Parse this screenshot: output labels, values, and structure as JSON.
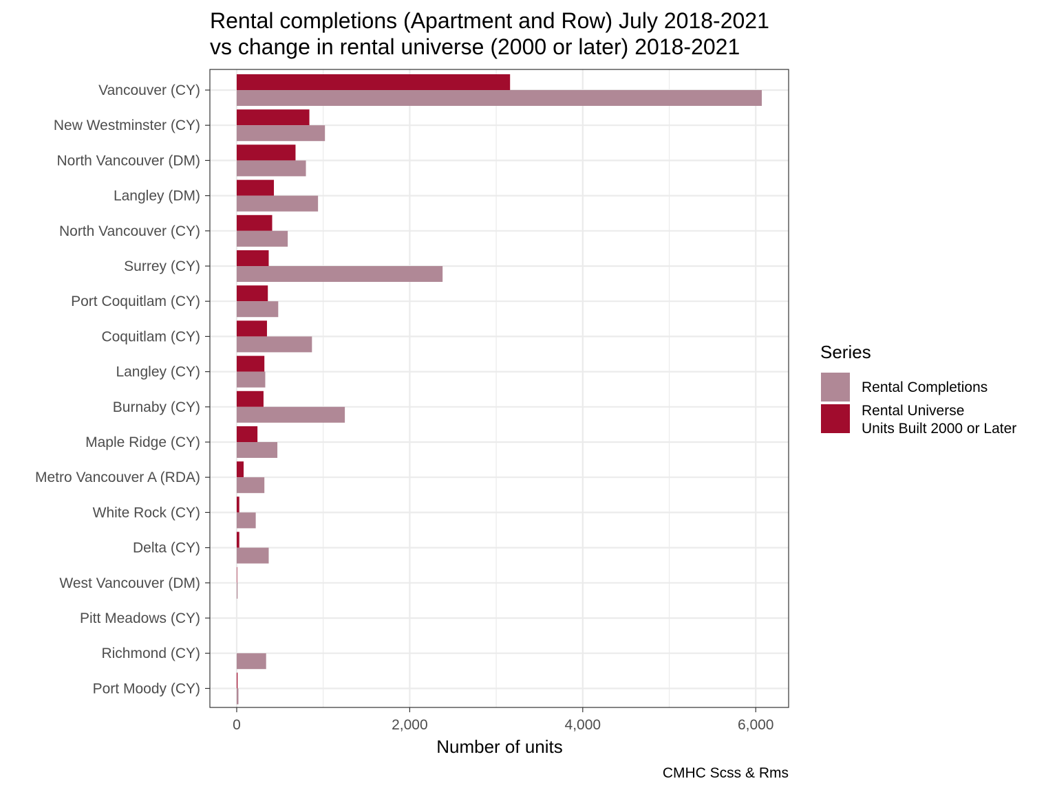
{
  "chart_data": {
    "type": "bar",
    "orientation": "horizontal",
    "title_line1": "Rental completions (Apartment and Row) July 2018-2021",
    "title_line2": "vs change in rental universe (2000 or later) 2018-2021",
    "xlabel": "Number of units",
    "ylabel": "",
    "caption": "CMHC Scss & Rms",
    "xlim": [
      -310,
      6380
    ],
    "x_ticks": [
      0,
      2000,
      4000,
      6000
    ],
    "x_tick_labels": [
      "0",
      "2,000",
      "4,000",
      "6,000"
    ],
    "grid": true,
    "legend_position": "right",
    "legend_title": "Series",
    "categories": [
      "Vancouver (CY)",
      "New Westminster (CY)",
      "North Vancouver (DM)",
      "Langley (DM)",
      "North Vancouver (CY)",
      "Surrey (CY)",
      "Port Coquitlam (CY)",
      "Coquitlam (CY)",
      "Langley (CY)",
      "Burnaby (CY)",
      "Maple Ridge (CY)",
      "Metro Vancouver A (RDA)",
      "White Rock (CY)",
      "Delta (CY)",
      "West Vancouver (DM)",
      "Pitt Meadows (CY)",
      "Richmond (CY)",
      "Port Moody (CY)"
    ],
    "series": [
      {
        "name": "Rental Completions",
        "color": "#b08896",
        "values": [
          6070,
          1020,
          800,
          940,
          590,
          2380,
          480,
          870,
          330,
          1250,
          470,
          320,
          220,
          370,
          10,
          0,
          340,
          20
        ]
      },
      {
        "name": "Rental Universe\nUnits Built 2000 or Later",
        "legend_line1": "Rental Universe",
        "legend_line2": "Units Built 2000 or Later",
        "color": "#a10c2d",
        "values": [
          3160,
          840,
          680,
          430,
          410,
          370,
          360,
          350,
          320,
          310,
          240,
          80,
          30,
          30,
          5,
          0,
          0,
          10
        ]
      }
    ]
  }
}
